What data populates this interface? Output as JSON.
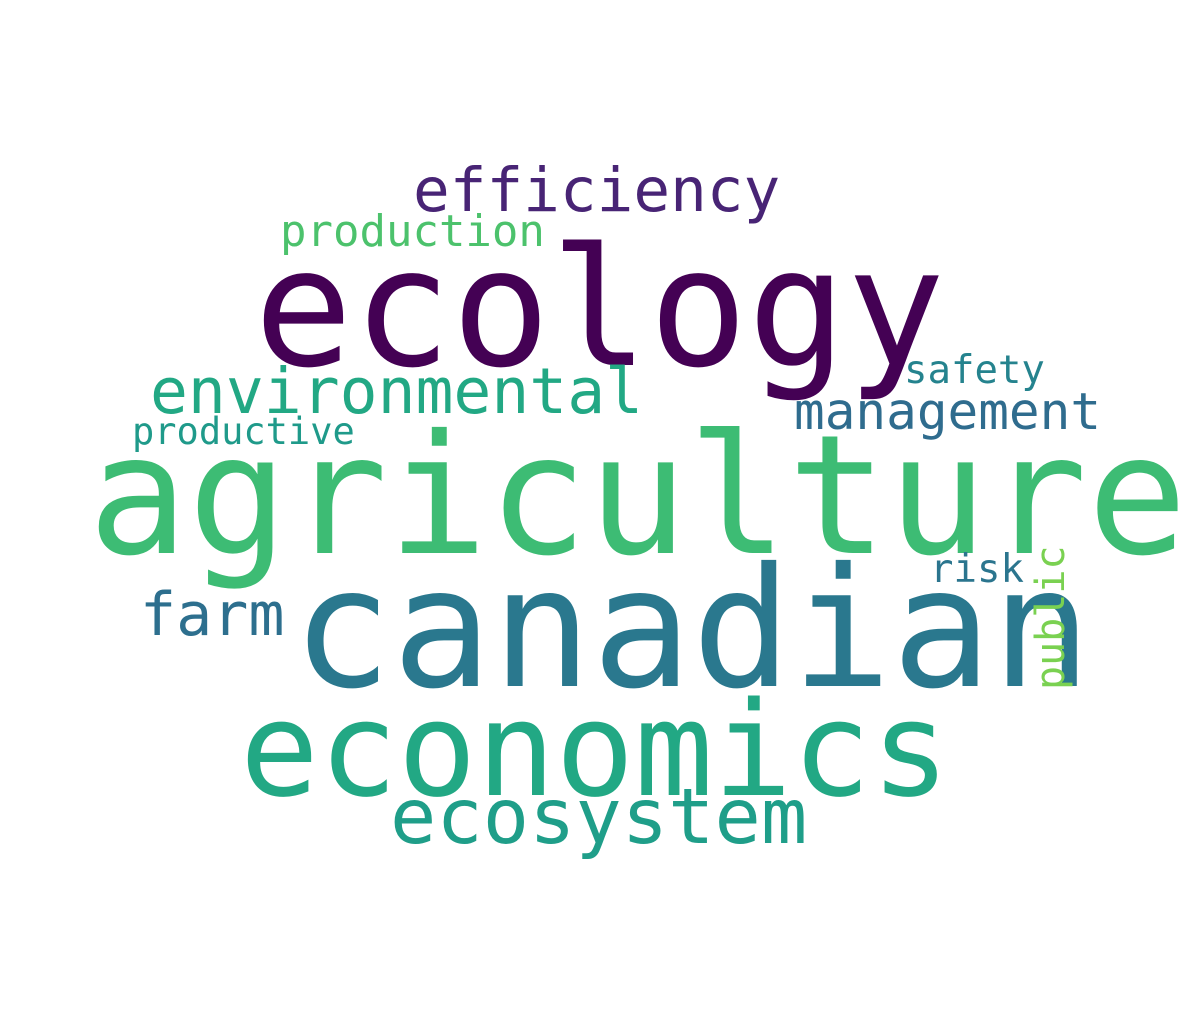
{
  "words": [
    {
      "key": "agriculture",
      "text": "agriculture",
      "color": "#3dbc74"
    },
    {
      "key": "canadian",
      "text": "canadian",
      "color": "#2a788e"
    },
    {
      "key": "ecology",
      "text": "ecology",
      "color": "#440154"
    },
    {
      "key": "economics",
      "text": "economics",
      "color": "#22a884"
    },
    {
      "key": "ecosystem",
      "text": "ecosystem",
      "color": "#1f9e89"
    },
    {
      "key": "environmental",
      "text": "environmental",
      "color": "#22a884"
    },
    {
      "key": "efficiency",
      "text": "efficiency",
      "color": "#482475"
    },
    {
      "key": "management",
      "text": "management",
      "color": "#2f6c8e"
    },
    {
      "key": "farm",
      "text": "farm",
      "color": "#2d6f8e"
    },
    {
      "key": "production",
      "text": "production",
      "color": "#4cc26c"
    },
    {
      "key": "productive",
      "text": "productive",
      "color": "#1f9a8a"
    },
    {
      "key": "safety",
      "text": "safety",
      "color": "#25838e"
    },
    {
      "key": "risk",
      "text": "risk",
      "color": "#2b758e"
    },
    {
      "key": "public",
      "text": "public",
      "color": "#7ad151"
    }
  ]
}
